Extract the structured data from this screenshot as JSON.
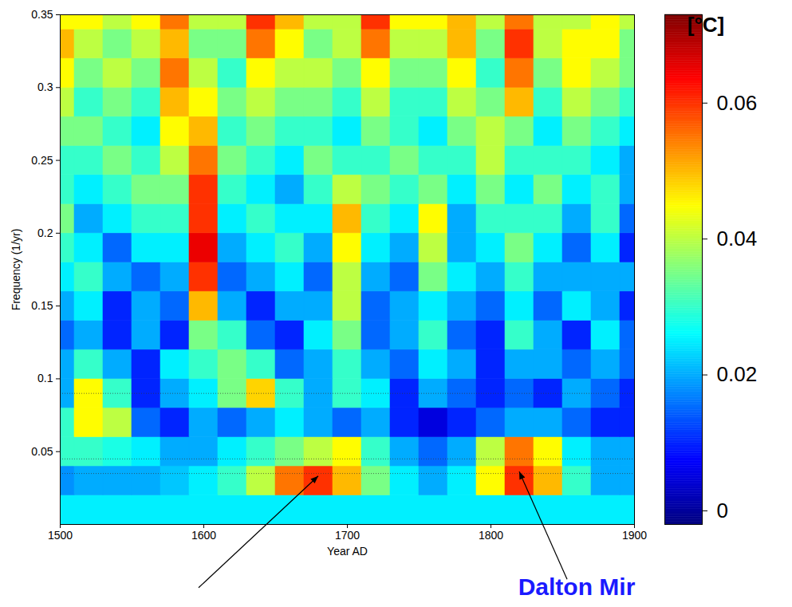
{
  "chart_data": {
    "type": "heatmap",
    "x_label": "Year AD",
    "y_label": "Frequency (1/yr)",
    "x": [
      1500,
      1520,
      1540,
      1560,
      1580,
      1600,
      1620,
      1640,
      1660,
      1680,
      1700,
      1720,
      1740,
      1760,
      1780,
      1800,
      1820,
      1840,
      1860,
      1880,
      1900
    ],
    "y": [
      0.01,
      0.03,
      0.05,
      0.07,
      0.09,
      0.11,
      0.13,
      0.15,
      0.17,
      0.19,
      0.21,
      0.23,
      0.25,
      0.27,
      0.29,
      0.31,
      0.33,
      0.35
    ],
    "cells": [
      [
        0.025,
        0.025,
        0.025,
        0.025,
        0.025,
        0.025,
        0.025,
        0.025,
        0.025,
        0.025,
        0.025,
        0.025,
        0.025,
        0.025,
        0.025,
        0.025,
        0.025,
        0.025,
        0.025,
        0.025,
        0.025
      ],
      [
        0.018,
        0.02,
        0.02,
        0.02,
        0.022,
        0.025,
        0.03,
        0.04,
        0.055,
        0.06,
        0.05,
        0.035,
        0.025,
        0.02,
        0.025,
        0.045,
        0.06,
        0.05,
        0.03,
        0.02,
        0.02
      ],
      [
        0.03,
        0.03,
        0.028,
        0.025,
        0.02,
        0.02,
        0.025,
        0.03,
        0.035,
        0.04,
        0.045,
        0.03,
        0.02,
        0.015,
        0.02,
        0.04,
        0.055,
        0.045,
        0.025,
        0.02,
        0.02
      ],
      [
        0.03,
        0.045,
        0.04,
        0.015,
        0.01,
        0.02,
        0.015,
        0.02,
        0.025,
        0.02,
        0.015,
        0.02,
        0.01,
        0.005,
        0.01,
        0.015,
        0.02,
        0.02,
        0.015,
        0.01,
        0.01
      ],
      [
        0.02,
        0.045,
        0.03,
        0.01,
        0.02,
        0.025,
        0.035,
        0.048,
        0.03,
        0.02,
        0.03,
        0.025,
        0.01,
        0.02,
        0.015,
        0.01,
        0.015,
        0.01,
        0.02,
        0.015,
        0.01
      ],
      [
        0.02,
        0.03,
        0.02,
        0.01,
        0.025,
        0.03,
        0.035,
        0.03,
        0.015,
        0.02,
        0.03,
        0.02,
        0.015,
        0.025,
        0.02,
        0.01,
        0.02,
        0.02,
        0.015,
        0.02,
        0.015
      ],
      [
        0.015,
        0.02,
        0.01,
        0.02,
        0.01,
        0.035,
        0.03,
        0.015,
        0.01,
        0.025,
        0.035,
        0.015,
        0.02,
        0.03,
        0.015,
        0.01,
        0.03,
        0.02,
        0.01,
        0.025,
        0.015
      ],
      [
        0.02,
        0.025,
        0.01,
        0.02,
        0.015,
        0.05,
        0.02,
        0.01,
        0.02,
        0.02,
        0.04,
        0.015,
        0.02,
        0.025,
        0.02,
        0.015,
        0.025,
        0.015,
        0.025,
        0.02,
        0.01
      ],
      [
        0.025,
        0.03,
        0.02,
        0.015,
        0.02,
        0.06,
        0.015,
        0.02,
        0.025,
        0.015,
        0.04,
        0.02,
        0.015,
        0.035,
        0.025,
        0.02,
        0.03,
        0.02,
        0.02,
        0.02,
        0.02
      ],
      [
        0.03,
        0.025,
        0.015,
        0.025,
        0.025,
        0.065,
        0.02,
        0.025,
        0.03,
        0.02,
        0.045,
        0.025,
        0.02,
        0.04,
        0.02,
        0.025,
        0.035,
        0.025,
        0.015,
        0.025,
        0.01
      ],
      [
        0.035,
        0.02,
        0.025,
        0.03,
        0.03,
        0.06,
        0.025,
        0.03,
        0.025,
        0.025,
        0.05,
        0.03,
        0.025,
        0.045,
        0.02,
        0.03,
        0.03,
        0.03,
        0.02,
        0.03,
        0.015
      ],
      [
        0.03,
        0.025,
        0.03,
        0.035,
        0.035,
        0.06,
        0.03,
        0.025,
        0.02,
        0.03,
        0.04,
        0.035,
        0.03,
        0.035,
        0.025,
        0.035,
        0.025,
        0.035,
        0.025,
        0.03,
        0.02
      ],
      [
        0.03,
        0.03,
        0.035,
        0.03,
        0.04,
        0.055,
        0.035,
        0.03,
        0.025,
        0.035,
        0.03,
        0.03,
        0.035,
        0.03,
        0.03,
        0.04,
        0.03,
        0.03,
        0.03,
        0.025,
        0.02
      ],
      [
        0.035,
        0.035,
        0.03,
        0.025,
        0.045,
        0.05,
        0.03,
        0.035,
        0.03,
        0.03,
        0.025,
        0.035,
        0.03,
        0.025,
        0.035,
        0.04,
        0.035,
        0.025,
        0.035,
        0.03,
        0.025
      ],
      [
        0.04,
        0.03,
        0.035,
        0.03,
        0.05,
        0.045,
        0.035,
        0.04,
        0.035,
        0.035,
        0.03,
        0.04,
        0.03,
        0.03,
        0.04,
        0.035,
        0.05,
        0.03,
        0.04,
        0.035,
        0.03
      ],
      [
        0.045,
        0.035,
        0.04,
        0.035,
        0.055,
        0.04,
        0.03,
        0.045,
        0.04,
        0.04,
        0.035,
        0.045,
        0.035,
        0.035,
        0.045,
        0.03,
        0.055,
        0.035,
        0.045,
        0.04,
        0.035
      ],
      [
        0.05,
        0.04,
        0.035,
        0.04,
        0.05,
        0.035,
        0.035,
        0.055,
        0.045,
        0.035,
        0.04,
        0.055,
        0.04,
        0.04,
        0.05,
        0.035,
        0.06,
        0.04,
        0.045,
        0.045,
        0.035
      ],
      [
        0.045,
        0.045,
        0.04,
        0.045,
        0.055,
        0.04,
        0.04,
        0.06,
        0.05,
        0.04,
        0.04,
        0.06,
        0.045,
        0.045,
        0.05,
        0.04,
        0.055,
        0.04,
        0.04,
        0.045,
        0.04
      ]
    ],
    "xlim": [
      1500,
      1900
    ],
    "ylim": [
      0,
      0.35
    ],
    "xticks": [
      1500,
      1600,
      1700,
      1800,
      1900
    ],
    "yticks": [
      0.05,
      0.1,
      0.15,
      0.2,
      0.25,
      0.3,
      0.35
    ],
    "color_label": "[°C]",
    "color_range": [
      -0.002,
      0.073
    ],
    "color_ticks": [
      0,
      0.02,
      0.04,
      0.06
    ],
    "reference_lines": [
      0.035,
      0.045,
      0.09
    ],
    "annotations": [
      {
        "x": 1680,
        "y": 0.033
      },
      {
        "text": "Dalton Mir",
        "x": 1820,
        "y": 0.036
      }
    ]
  }
}
